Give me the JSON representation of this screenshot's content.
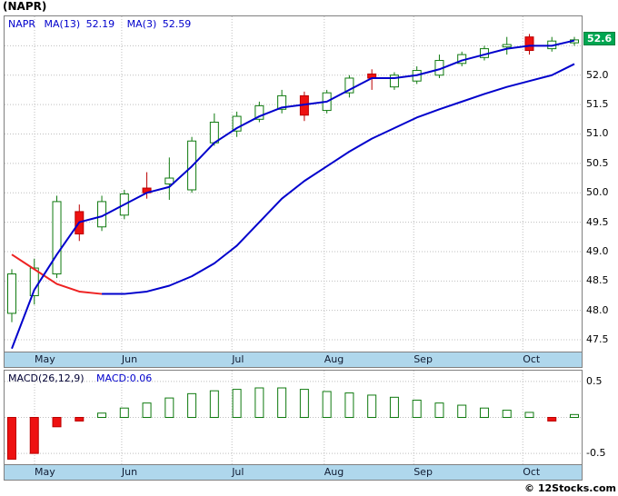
{
  "title": "(NAPR)",
  "price_panel": {
    "symbol": "NAPR",
    "ma13_label": "MA(13)",
    "ma13_value": "52.19",
    "ma3_label": "MA(3)",
    "ma3_value": "52.59",
    "last_price_badge": "52.6",
    "y_ticks": [
      "52.0",
      "51.5",
      "51.0",
      "50.5",
      "50.0",
      "49.5",
      "49.0",
      "48.5",
      "48.0",
      "47.5"
    ]
  },
  "macd_panel": {
    "title": "MACD(26,12,9)",
    "value": "MACD:0.06",
    "y_ticks": [
      "0.5",
      "-0.5"
    ]
  },
  "footer": {
    "copyright": "© 12Stocks.com"
  },
  "colors": {
    "up_candle_outline": "#0f7a0f",
    "down_candle_fill": "#ee1111",
    "down_candle_outline": "#bb0000",
    "ma_fast": "#0000cc",
    "ma_slow": "#0000cc",
    "ma_slow_declining": "#ee2222",
    "badge_bg": "#00a651",
    "band_bg": "#afd7ec",
    "grid": "#bfbfbf",
    "border": "#808080"
  },
  "chart_data": [
    {
      "type": "candlestick",
      "title": "NAPR weekly price with MA(13) and MA(3)",
      "ylim": [
        47.3,
        53.0
      ],
      "y_tick_values": [
        52.5,
        52.0,
        51.5,
        51.0,
        50.5,
        50.0,
        49.5,
        49.0,
        48.5,
        48.0,
        47.5
      ],
      "x_months": [
        {
          "label": "May",
          "pos": 0.052
        },
        {
          "label": "Jun",
          "pos": 0.203
        },
        {
          "label": "Jul",
          "pos": 0.394
        },
        {
          "label": "Aug",
          "pos": 0.554
        },
        {
          "label": "Sep",
          "pos": 0.709
        },
        {
          "label": "Oct",
          "pos": 0.898
        }
      ],
      "candles_ohlc": [
        [
          47.95,
          48.7,
          47.8,
          48.62
        ],
        [
          48.25,
          48.88,
          48.1,
          48.72
        ],
        [
          48.62,
          49.95,
          48.55,
          49.85
        ],
        [
          49.68,
          49.8,
          49.18,
          49.3
        ],
        [
          49.42,
          49.95,
          49.35,
          49.85
        ],
        [
          49.62,
          50.05,
          49.55,
          49.98
        ],
        [
          50.08,
          50.35,
          49.9,
          50.0
        ],
        [
          50.15,
          50.6,
          49.88,
          50.25
        ],
        [
          50.05,
          50.95,
          50.0,
          50.88
        ],
        [
          50.85,
          51.35,
          50.8,
          51.2
        ],
        [
          51.05,
          51.38,
          50.95,
          51.3
        ],
        [
          51.25,
          51.55,
          51.2,
          51.48
        ],
        [
          51.42,
          51.75,
          51.35,
          51.65
        ],
        [
          51.65,
          51.72,
          51.22,
          51.32
        ],
        [
          51.4,
          51.75,
          51.35,
          51.7
        ],
        [
          51.7,
          52.0,
          51.62,
          51.95
        ],
        [
          52.02,
          52.1,
          51.75,
          51.95
        ],
        [
          51.8,
          52.05,
          51.75,
          52.0
        ],
        [
          51.9,
          52.15,
          51.85,
          52.08
        ],
        [
          52.0,
          52.35,
          51.95,
          52.25
        ],
        [
          52.2,
          52.4,
          52.15,
          52.35
        ],
        [
          52.3,
          52.5,
          52.25,
          52.45
        ],
        [
          52.48,
          52.65,
          52.35,
          52.52
        ],
        [
          52.65,
          52.7,
          52.35,
          52.42
        ],
        [
          52.45,
          52.65,
          52.4,
          52.58
        ],
        [
          52.55,
          52.65,
          52.5,
          52.6
        ]
      ],
      "ma_fast_values": [
        47.35,
        48.35,
        48.95,
        49.5,
        49.6,
        49.8,
        50.0,
        50.1,
        50.45,
        50.85,
        51.1,
        51.3,
        51.45,
        51.5,
        51.55,
        51.75,
        51.95,
        51.95,
        52.0,
        52.1,
        52.25,
        52.35,
        52.45,
        52.5,
        52.5,
        52.59
      ],
      "ma_slow_values": [
        48.95,
        48.7,
        48.45,
        48.32,
        48.28,
        48.28,
        48.32,
        48.42,
        48.58,
        48.8,
        49.1,
        49.5,
        49.9,
        50.2,
        50.45,
        50.7,
        50.92,
        51.1,
        51.28,
        51.42,
        51.55,
        51.68,
        51.8,
        51.9,
        52.0,
        52.19
      ],
      "ma_slow_red_until": 4,
      "last_price": 52.6
    },
    {
      "type": "bar",
      "title": "MACD(26,12,9) histogram",
      "ylim": [
        -0.65,
        0.65
      ],
      "y_tick_values": [
        0.5,
        0,
        -0.5
      ],
      "values": [
        -0.58,
        -0.5,
        -0.13,
        -0.05,
        0.06,
        0.13,
        0.2,
        0.27,
        0.33,
        0.37,
        0.39,
        0.41,
        0.41,
        0.39,
        0.36,
        0.34,
        0.31,
        0.28,
        0.24,
        0.2,
        0.17,
        0.13,
        0.1,
        0.07,
        -0.05,
        0.04
      ]
    }
  ]
}
